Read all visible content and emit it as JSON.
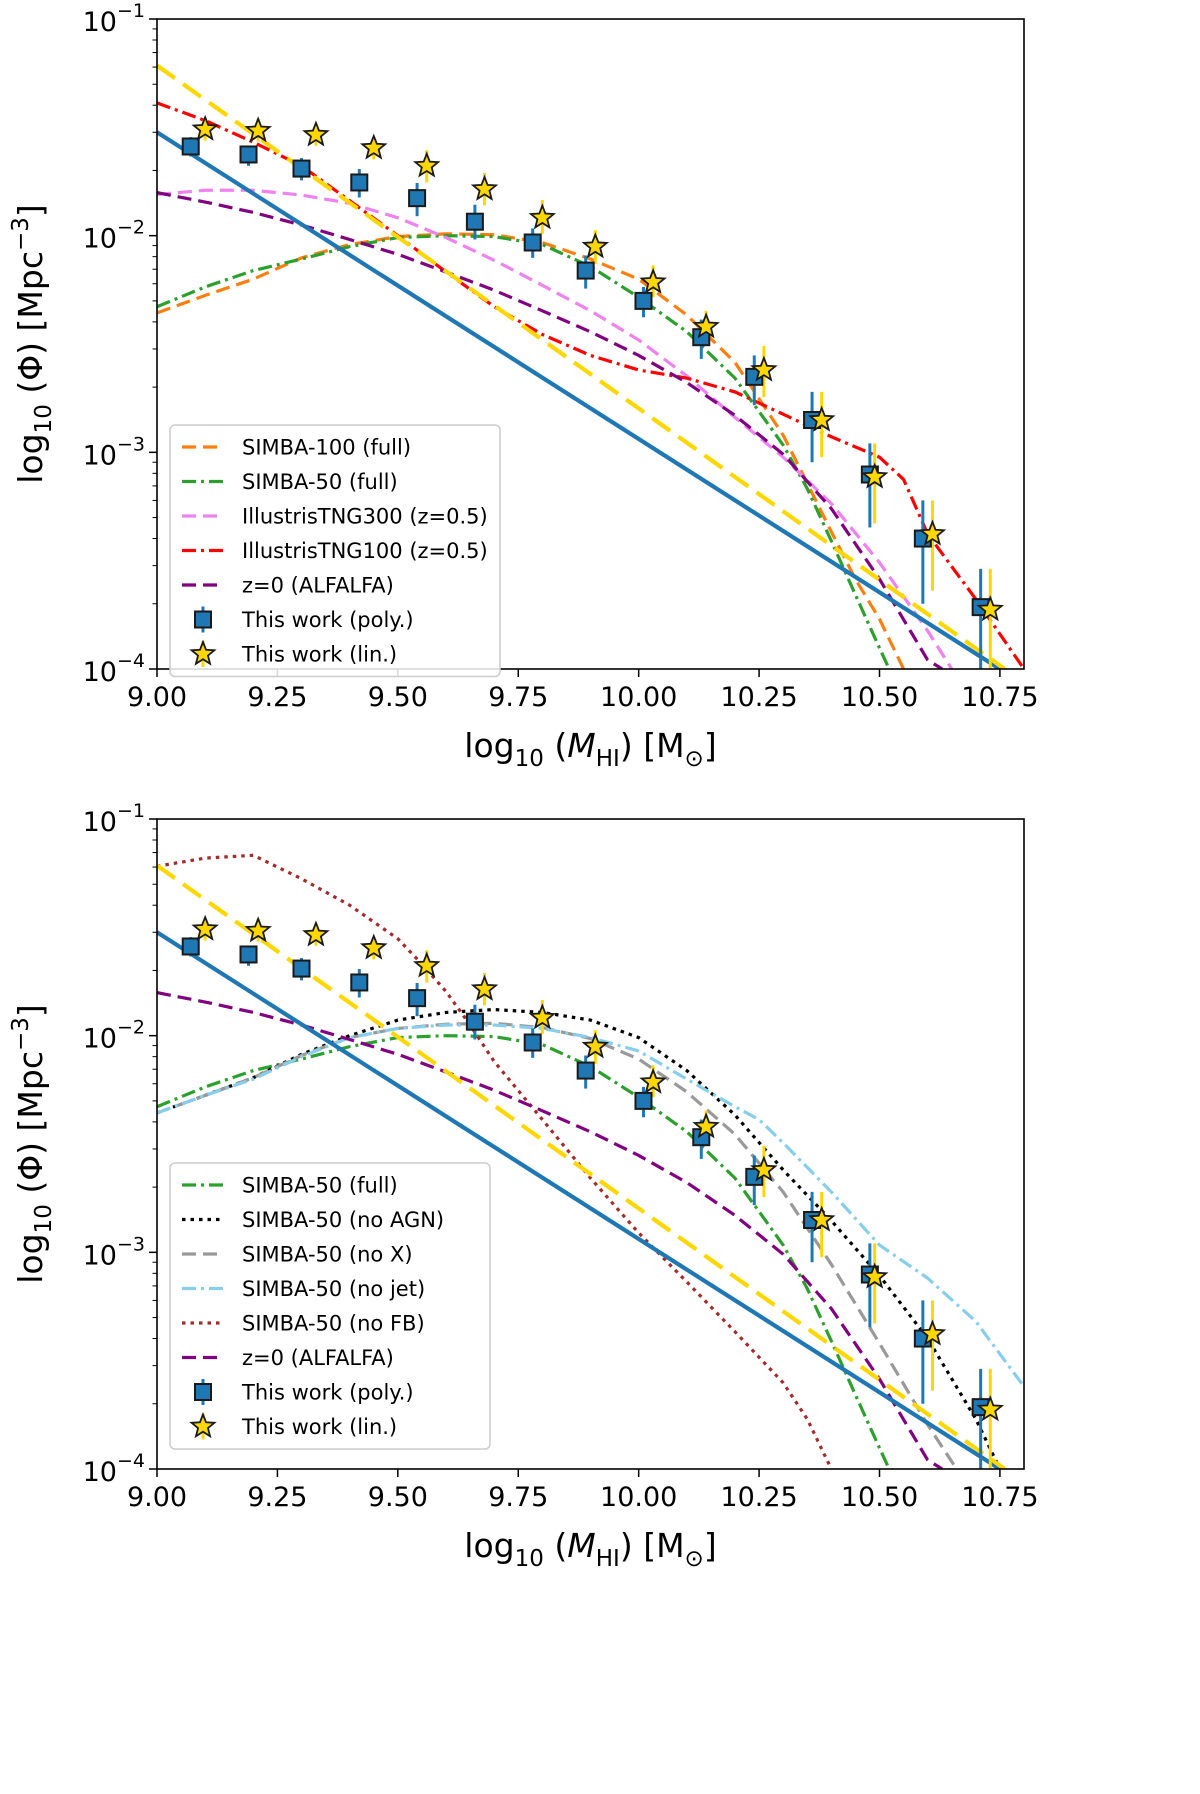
{
  "chart_data": [
    {
      "type": "line",
      "panel": "top",
      "xlabel": "log₁₀ (M_HI) [M⊙]",
      "ylabel": "log₁₀ (Φ) [Mpc⁻³]",
      "xlim": [
        9.0,
        10.8
      ],
      "ylim_log10": [
        -4,
        -1
      ],
      "yscale": "log",
      "xticks": [
        "9.00",
        "9.25",
        "9.50",
        "9.75",
        "10.00",
        "10.25",
        "10.50",
        "10.75"
      ],
      "yticks": [
        {
          "base": "10",
          "exp": "−1"
        },
        {
          "base": "10",
          "exp": "−2"
        },
        {
          "base": "10",
          "exp": "−3"
        },
        {
          "base": "10",
          "exp": "−4"
        }
      ],
      "legend_position": "lower-left",
      "series": [
        {
          "name": "SIMBA-100 (full)",
          "color": "#ff7f0e",
          "style": "dashed",
          "x": [
            9.0,
            9.1,
            9.2,
            9.3,
            9.4,
            9.5,
            9.6,
            9.7,
            9.8,
            9.9,
            10.0,
            10.1,
            10.2,
            10.3,
            10.35,
            10.4,
            10.45,
            10.5,
            10.55
          ],
          "y": [
            0.0044,
            0.0053,
            0.0063,
            0.0079,
            0.0091,
            0.0099,
            0.0102,
            0.0101,
            0.0093,
            0.0078,
            0.0063,
            0.0043,
            0.0026,
            0.0012,
            0.00072,
            0.00043,
            0.00026,
            0.00017,
            0.0001
          ]
        },
        {
          "name": "SIMBA-50 (full)",
          "color": "#2ca02c",
          "style": "dashdot",
          "x": [
            9.0,
            9.1,
            9.2,
            9.3,
            9.4,
            9.5,
            9.6,
            9.7,
            9.8,
            9.9,
            10.0,
            10.1,
            10.2,
            10.3,
            10.35,
            10.4,
            10.45,
            10.5,
            10.52
          ],
          "y": [
            0.0047,
            0.0058,
            0.0069,
            0.0078,
            0.0089,
            0.0098,
            0.01,
            0.0099,
            0.0091,
            0.0072,
            0.0052,
            0.0036,
            0.0022,
            0.00108,
            0.00068,
            0.00039,
            0.00022,
            0.000125,
            0.0001
          ]
        },
        {
          "name": "IllustrisTNG300 (z=0.5)",
          "color": "#ee82ee",
          "style": "dashed",
          "x": [
            9.0,
            9.1,
            9.2,
            9.3,
            9.4,
            9.5,
            9.6,
            9.7,
            9.8,
            9.9,
            10.0,
            10.1,
            10.2,
            10.3,
            10.4,
            10.5,
            10.6,
            10.65
          ],
          "y": [
            0.0155,
            0.0162,
            0.0162,
            0.0154,
            0.0141,
            0.0121,
            0.0098,
            0.0077,
            0.0059,
            0.0045,
            0.0033,
            0.00225,
            0.00145,
            0.00095,
            0.00058,
            0.00031,
            0.00015,
            0.0001
          ]
        },
        {
          "name": "IllustrisTNG100 (z=0.5)",
          "color": "#ff0000",
          "style": "dashdot",
          "x": [
            9.0,
            9.1,
            9.2,
            9.3,
            9.4,
            9.5,
            9.6,
            9.7,
            9.8,
            9.9,
            10.0,
            10.1,
            10.2,
            10.3,
            10.4,
            10.5,
            10.55,
            10.6,
            10.7,
            10.8
          ],
          "y": [
            0.041,
            0.034,
            0.027,
            0.021,
            0.0145,
            0.01,
            0.0068,
            0.0047,
            0.0035,
            0.0028,
            0.0024,
            0.0022,
            0.0019,
            0.0015,
            0.00118,
            0.00095,
            0.00075,
            0.00042,
            0.00021,
            0.0001
          ]
        },
        {
          "name": "z=0 (ALFALFA)",
          "color": "#800080",
          "style": "dashed",
          "x": [
            9.0,
            9.1,
            9.2,
            9.3,
            9.4,
            9.5,
            9.6,
            9.7,
            9.8,
            9.9,
            10.0,
            10.1,
            10.2,
            10.3,
            10.4,
            10.5,
            10.6,
            10.63
          ],
          "y": [
            0.0158,
            0.0143,
            0.0128,
            0.0112,
            0.0096,
            0.0082,
            0.0068,
            0.0056,
            0.0045,
            0.0036,
            0.0028,
            0.0021,
            0.00148,
            0.00098,
            0.00055,
            0.00026,
            0.00011,
            0.0001
          ]
        }
      ],
      "fits": [
        {
          "name": "poly. fit",
          "color": "#1f77b4",
          "x": [
            9.0,
            10.75
          ],
          "y": [
            0.03,
            0.0001
          ]
        },
        {
          "name": "lin. fit",
          "color": "#ffd700",
          "x": [
            9.0,
            10.76
          ],
          "y": [
            0.061,
            0.0001
          ]
        }
      ],
      "points": [
        {
          "name": "This work (poly.)",
          "marker": "square",
          "color": "#1f77b4",
          "x": [
            9.07,
            9.19,
            9.3,
            9.42,
            9.54,
            9.66,
            9.78,
            9.89,
            10.01,
            10.13,
            10.24,
            10.36,
            10.48,
            10.59,
            10.71
          ],
          "y": [
            0.0258,
            0.0237,
            0.0204,
            0.0176,
            0.0149,
            0.0116,
            0.0093,
            0.0069,
            0.005,
            0.0034,
            0.00223,
            0.00141,
            0.00079,
            0.0004,
            0.000193
          ],
          "lo": [
            0.0232,
            0.021,
            0.018,
            0.015,
            0.0123,
            0.0096,
            0.0079,
            0.0057,
            0.0042,
            0.0027,
            0.00165,
            0.0009,
            0.00045,
            0.0002,
            0.0001
          ],
          "hi": [
            0.0285,
            0.026,
            0.0228,
            0.0203,
            0.0175,
            0.0139,
            0.0108,
            0.0081,
            0.0058,
            0.0041,
            0.0028,
            0.0019,
            0.0011,
            0.0006,
            0.00029
          ]
        },
        {
          "name": "This work (lin.)",
          "marker": "star",
          "color": "#ffd700",
          "x": [
            9.1,
            9.21,
            9.33,
            9.45,
            9.56,
            9.68,
            9.8,
            9.91,
            10.03,
            10.14,
            10.26,
            10.38,
            10.49,
            10.61,
            10.73
          ],
          "y": [
            0.031,
            0.0305,
            0.0292,
            0.0254,
            0.021,
            0.0164,
            0.0121,
            0.0089,
            0.0061,
            0.0038,
            0.0024,
            0.00141,
            0.00077,
            0.00042,
            0.000188
          ],
          "lo": [
            0.0275,
            0.0272,
            0.026,
            0.0225,
            0.0176,
            0.0138,
            0.0102,
            0.0074,
            0.0052,
            0.0032,
            0.0018,
            0.00095,
            0.00047,
            0.00023,
            0.0001
          ],
          "hi": [
            0.035,
            0.0345,
            0.0328,
            0.0286,
            0.0248,
            0.0195,
            0.0146,
            0.0106,
            0.0073,
            0.0045,
            0.0031,
            0.0019,
            0.0011,
            0.0006,
            0.00029
          ]
        }
      ]
    },
    {
      "type": "line",
      "panel": "bottom",
      "xlabel": "log₁₀ (M_HI) [M⊙]",
      "ylabel": "log₁₀ (Φ) [Mpc⁻³]",
      "xlim": [
        9.0,
        10.8
      ],
      "ylim_log10": [
        -4,
        -1
      ],
      "yscale": "log",
      "xticks": [
        "9.00",
        "9.25",
        "9.50",
        "9.75",
        "10.00",
        "10.25",
        "10.50",
        "10.75"
      ],
      "yticks": [
        {
          "base": "10",
          "exp": "−1"
        },
        {
          "base": "10",
          "exp": "−2"
        },
        {
          "base": "10",
          "exp": "−3"
        },
        {
          "base": "10",
          "exp": "−4"
        }
      ],
      "legend_position": "lower-left",
      "series": [
        {
          "name": "SIMBA-50 (full)",
          "color": "#2ca02c",
          "style": "dashdot",
          "x": [
            9.0,
            9.1,
            9.2,
            9.3,
            9.4,
            9.5,
            9.6,
            9.7,
            9.8,
            9.9,
            10.0,
            10.1,
            10.2,
            10.3,
            10.35,
            10.4,
            10.45,
            10.5,
            10.52
          ],
          "y": [
            0.0047,
            0.0058,
            0.0069,
            0.0078,
            0.0089,
            0.0098,
            0.01,
            0.0099,
            0.0091,
            0.0072,
            0.0052,
            0.0036,
            0.0022,
            0.00108,
            0.00068,
            0.00039,
            0.00022,
            0.000125,
            0.0001
          ]
        },
        {
          "name": "SIMBA-50 (no AGN)",
          "color": "#000000",
          "style": "dotted",
          "x": [
            9.0,
            9.1,
            9.2,
            9.3,
            9.4,
            9.5,
            9.6,
            9.7,
            9.8,
            9.9,
            10.0,
            10.1,
            10.2,
            10.3,
            10.4,
            10.5,
            10.6,
            10.7,
            10.75
          ],
          "y": [
            0.0044,
            0.0053,
            0.0064,
            0.0082,
            0.01,
            0.0118,
            0.0128,
            0.0132,
            0.0128,
            0.0118,
            0.0098,
            0.0069,
            0.0043,
            0.0024,
            0.0014,
            0.00078,
            0.0004,
            0.00017,
            0.0001
          ]
        },
        {
          "name": "SIMBA-50 (no X)",
          "color": "#999999",
          "style": "dashed",
          "x": [
            9.0,
            9.1,
            9.2,
            9.3,
            9.4,
            9.5,
            9.6,
            9.7,
            9.8,
            9.9,
            10.0,
            10.1,
            10.2,
            10.3,
            10.4,
            10.5,
            10.6,
            10.66
          ],
          "y": [
            0.0044,
            0.0053,
            0.0064,
            0.0081,
            0.0098,
            0.0108,
            0.0113,
            0.0114,
            0.0109,
            0.0097,
            0.0078,
            0.0055,
            0.0035,
            0.0019,
            0.00088,
            0.00038,
            0.00016,
            0.0001
          ]
        },
        {
          "name": "SIMBA-50 (no jet)",
          "color": "#87ceeb",
          "style": "dashdot",
          "x": [
            9.0,
            9.1,
            9.2,
            9.3,
            9.4,
            9.5,
            9.6,
            9.7,
            9.8,
            9.9,
            10.0,
            10.1,
            10.2,
            10.25,
            10.3,
            10.4,
            10.5,
            10.6,
            10.7,
            10.8
          ],
          "y": [
            0.0044,
            0.0053,
            0.0063,
            0.008,
            0.0098,
            0.0108,
            0.0112,
            0.0112,
            0.0108,
            0.0098,
            0.0085,
            0.0063,
            0.0047,
            0.0041,
            0.0032,
            0.0019,
            0.00108,
            0.00076,
            0.00048,
            0.00024
          ]
        },
        {
          "name": "SIMBA-50 (no FB)",
          "color": "#a52a2a",
          "style": "dotted",
          "x": [
            9.0,
            9.1,
            9.2,
            9.3,
            9.4,
            9.5,
            9.55,
            9.6,
            9.65,
            9.7,
            9.8,
            9.9,
            10.0,
            10.1,
            10.2,
            10.3,
            10.35,
            10.4
          ],
          "y": [
            0.0605,
            0.066,
            0.068,
            0.053,
            0.04,
            0.028,
            0.0214,
            0.016,
            0.0112,
            0.0076,
            0.0041,
            0.0022,
            0.00123,
            0.00073,
            0.00043,
            0.00025,
            0.00017,
            0.0001
          ]
        },
        {
          "name": "z=0 (ALFALFA)",
          "color": "#800080",
          "style": "dashed",
          "x": [
            9.0,
            9.1,
            9.2,
            9.3,
            9.4,
            9.5,
            9.6,
            9.7,
            9.8,
            9.9,
            10.0,
            10.1,
            10.2,
            10.3,
            10.4,
            10.5,
            10.6,
            10.63
          ],
          "y": [
            0.0158,
            0.0143,
            0.0128,
            0.0112,
            0.0096,
            0.0082,
            0.0068,
            0.0056,
            0.0045,
            0.0036,
            0.0028,
            0.0021,
            0.00148,
            0.00098,
            0.00055,
            0.00026,
            0.00011,
            0.0001
          ]
        }
      ],
      "fits": [
        {
          "name": "poly. fit",
          "color": "#1f77b4",
          "x": [
            9.0,
            10.75
          ],
          "y": [
            0.03,
            0.0001
          ]
        },
        {
          "name": "lin. fit",
          "color": "#ffd700",
          "x": [
            9.0,
            10.76
          ],
          "y": [
            0.061,
            0.0001
          ]
        }
      ],
      "points": [
        {
          "name": "This work (poly.)",
          "marker": "square",
          "color": "#1f77b4",
          "x": [
            9.07,
            9.19,
            9.3,
            9.42,
            9.54,
            9.66,
            9.78,
            9.89,
            10.01,
            10.13,
            10.24,
            10.36,
            10.48,
            10.59,
            10.71
          ],
          "y": [
            0.0258,
            0.0237,
            0.0204,
            0.0176,
            0.0149,
            0.0116,
            0.0093,
            0.0069,
            0.005,
            0.0034,
            0.00223,
            0.00141,
            0.00079,
            0.0004,
            0.000193
          ],
          "lo": [
            0.0232,
            0.021,
            0.018,
            0.015,
            0.0123,
            0.0096,
            0.0079,
            0.0057,
            0.0042,
            0.0027,
            0.00165,
            0.0009,
            0.00045,
            0.0002,
            0.0001
          ],
          "hi": [
            0.0285,
            0.026,
            0.0228,
            0.0203,
            0.0175,
            0.0139,
            0.0108,
            0.0081,
            0.0058,
            0.0041,
            0.0028,
            0.0019,
            0.0011,
            0.0006,
            0.00029
          ]
        },
        {
          "name": "This work (lin.)",
          "marker": "star",
          "color": "#ffd700",
          "x": [
            9.1,
            9.21,
            9.33,
            9.45,
            9.56,
            9.68,
            9.8,
            9.91,
            10.03,
            10.14,
            10.26,
            10.38,
            10.49,
            10.61,
            10.73
          ],
          "y": [
            0.031,
            0.0305,
            0.0292,
            0.0254,
            0.021,
            0.0164,
            0.0121,
            0.0089,
            0.0061,
            0.0038,
            0.0024,
            0.00141,
            0.00077,
            0.00042,
            0.000188
          ],
          "lo": [
            0.0275,
            0.0272,
            0.026,
            0.0225,
            0.0176,
            0.0138,
            0.0102,
            0.0074,
            0.0052,
            0.0032,
            0.0018,
            0.00095,
            0.00047,
            0.00023,
            0.0001
          ],
          "hi": [
            0.035,
            0.0345,
            0.0328,
            0.0286,
            0.0248,
            0.0195,
            0.0146,
            0.0106,
            0.0073,
            0.0045,
            0.0031,
            0.0019,
            0.0011,
            0.0006,
            0.00029
          ]
        }
      ]
    }
  ]
}
